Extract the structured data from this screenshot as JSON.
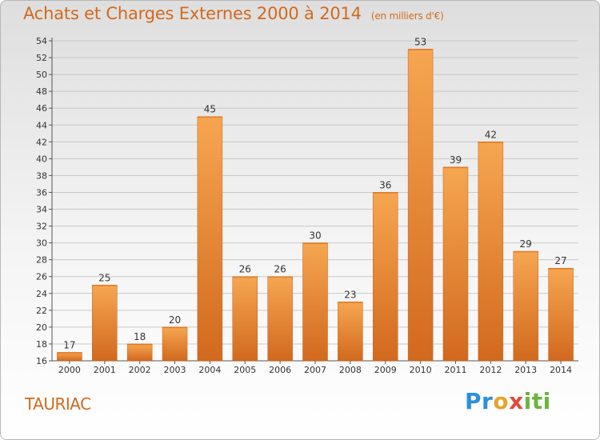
{
  "header": {
    "title": "Achats et Charges Externes 2000 à 2014",
    "unit": "(en milliers d'€)"
  },
  "footer": {
    "commune": "TAURIAC",
    "logo": "Proxiti"
  },
  "chart_data": {
    "type": "bar",
    "title": "Achats et Charges Externes 2000 à 2014",
    "subtitle": "(en milliers d'€)",
    "xlabel": "",
    "ylabel": "",
    "categories": [
      "2000",
      "2001",
      "2002",
      "2003",
      "2004",
      "2005",
      "2006",
      "2007",
      "2008",
      "2009",
      "2010",
      "2011",
      "2012",
      "2013",
      "2014"
    ],
    "values": [
      17,
      25,
      18,
      20,
      45,
      26,
      26,
      30,
      23,
      36,
      53,
      39,
      42,
      29,
      27
    ],
    "ylim": [
      16,
      54
    ],
    "yticks": [
      16,
      18,
      20,
      22,
      24,
      26,
      28,
      30,
      32,
      34,
      36,
      38,
      40,
      42,
      44,
      46,
      48,
      50,
      52,
      54
    ],
    "grid": true,
    "legend": "none",
    "colors": {
      "bar_light": "#f6a650",
      "bar_dark": "#d2691e",
      "title": "#d2691e",
      "grid": "#c8c8c8"
    }
  }
}
